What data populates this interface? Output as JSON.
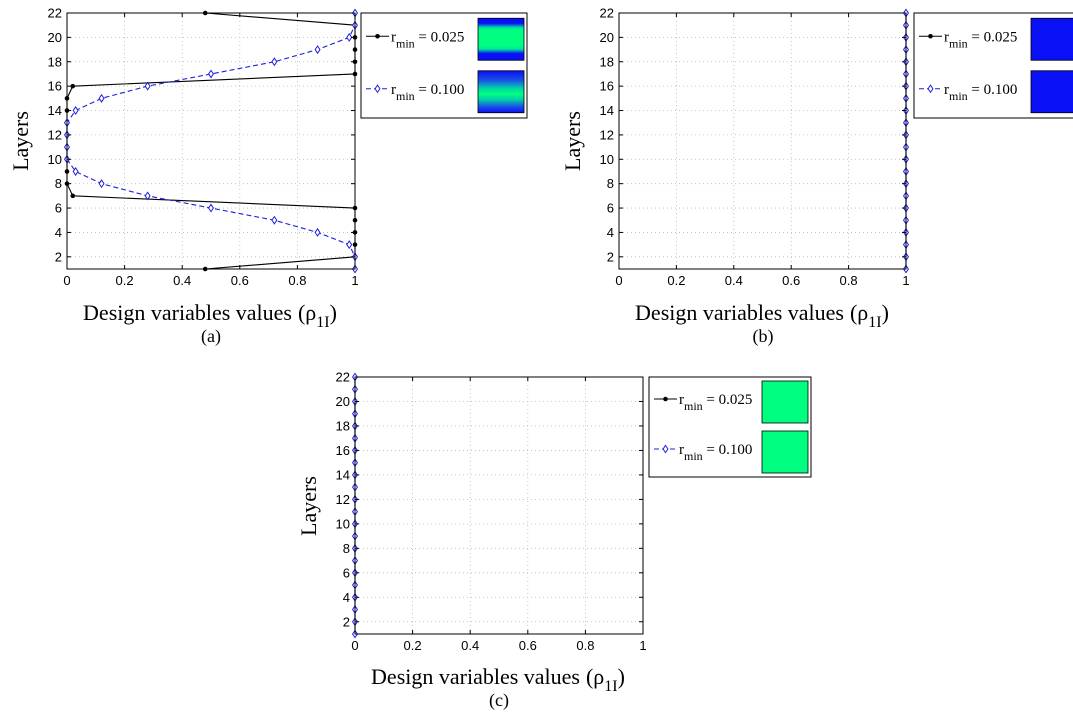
{
  "colors": {
    "series1": "#000000",
    "series2": "#1f1fdb",
    "blue_fill": "#0a10f5",
    "green_fill": "#00ff80"
  },
  "chart_data": [
    {
      "panel": "a",
      "type": "line",
      "caption": "(a)",
      "xlabel": "Design variables values",
      "xlabel_symbol": "(ρ",
      "xlabel_subscript": "1I",
      "xlabel_close": ")",
      "ylabel": "Layers",
      "xlim": [
        0,
        1
      ],
      "ylim": [
        1,
        22
      ],
      "xticks": [
        0,
        0.2,
        0.4,
        0.6,
        0.8,
        1
      ],
      "yticks": [
        2,
        4,
        6,
        8,
        10,
        12,
        14,
        16,
        18,
        20,
        22
      ],
      "grid": true,
      "legend": {
        "position": "outside-right",
        "entries": [
          {
            "prefix": "r",
            "sub": "min",
            "suffix": " = 0.025",
            "thumb": "bands"
          },
          {
            "prefix": "r",
            "sub": "min",
            "suffix": " = 0.100",
            "thumb": "gradient"
          }
        ]
      },
      "series": [
        {
          "x": [
            0.48,
            1,
            1,
            1,
            1,
            1,
            0.02,
            0,
            0,
            0,
            0,
            0,
            0,
            0,
            0,
            0.02,
            1,
            1,
            1,
            1,
            1,
            0.48
          ],
          "y": [
            1,
            2,
            3,
            4,
            5,
            6,
            7,
            8,
            9,
            10,
            11,
            12,
            13,
            14,
            15,
            16,
            17,
            18,
            19,
            20,
            21,
            22
          ]
        },
        {
          "x": [
            1,
            1,
            0.98,
            0.87,
            0.72,
            0.5,
            0.28,
            0.12,
            0.03,
            0,
            0,
            0,
            0,
            0.03,
            0.12,
            0.28,
            0.5,
            0.72,
            0.87,
            0.98,
            1,
            1
          ],
          "y": [
            1,
            2,
            3,
            4,
            5,
            6,
            7,
            8,
            9,
            10,
            11,
            12,
            13,
            14,
            15,
            16,
            17,
            18,
            19,
            20,
            21,
            22
          ]
        }
      ]
    },
    {
      "panel": "b",
      "type": "line",
      "caption": "(b)",
      "xlabel": "Design variables values",
      "xlabel_symbol": "(ρ",
      "xlabel_subscript": "1I",
      "xlabel_close": ")",
      "ylabel": "Layers",
      "xlim": [
        0,
        1
      ],
      "ylim": [
        1,
        22
      ],
      "xticks": [
        0,
        0.2,
        0.4,
        0.6,
        0.8,
        1
      ],
      "yticks": [
        2,
        4,
        6,
        8,
        10,
        12,
        14,
        16,
        18,
        20,
        22
      ],
      "grid": true,
      "legend": {
        "position": "outside-right",
        "entries": [
          {
            "prefix": "r",
            "sub": "min",
            "suffix": " = 0.025",
            "thumb": "blue"
          },
          {
            "prefix": "r",
            "sub": "min",
            "suffix": " = 0.100",
            "thumb": "blue"
          }
        ]
      },
      "series": [
        {
          "x": [
            1,
            1,
            1,
            1,
            1,
            1,
            1,
            1,
            1,
            1,
            1,
            1,
            1,
            1,
            1,
            1,
            1,
            1,
            1,
            1,
            1,
            1
          ],
          "y": [
            1,
            2,
            3,
            4,
            5,
            6,
            7,
            8,
            9,
            10,
            11,
            12,
            13,
            14,
            15,
            16,
            17,
            18,
            19,
            20,
            21,
            22
          ]
        },
        {
          "x": [
            1,
            1,
            1,
            1,
            1,
            1,
            1,
            1,
            1,
            1,
            1,
            1,
            1,
            1,
            1,
            1,
            1,
            1,
            1,
            1,
            1,
            1
          ],
          "y": [
            1,
            2,
            3,
            4,
            5,
            6,
            7,
            8,
            9,
            10,
            11,
            12,
            13,
            14,
            15,
            16,
            17,
            18,
            19,
            20,
            21,
            22
          ]
        }
      ]
    },
    {
      "panel": "c",
      "type": "line",
      "caption": "(c)",
      "xlabel": "Design variables values",
      "xlabel_symbol": "(ρ",
      "xlabel_subscript": "1I",
      "xlabel_close": ")",
      "ylabel": "Layers",
      "xlim": [
        0,
        1
      ],
      "ylim": [
        1,
        22
      ],
      "xticks": [
        0,
        0.2,
        0.4,
        0.6,
        0.8,
        1
      ],
      "yticks": [
        2,
        4,
        6,
        8,
        10,
        12,
        14,
        16,
        18,
        20,
        22
      ],
      "grid": true,
      "legend": {
        "position": "outside-right",
        "entries": [
          {
            "prefix": "r",
            "sub": "min",
            "suffix": " = 0.025",
            "thumb": "green"
          },
          {
            "prefix": "r",
            "sub": "min",
            "suffix": " = 0.100",
            "thumb": "green"
          }
        ]
      },
      "series": [
        {
          "x": [
            0,
            0,
            0,
            0,
            0,
            0,
            0,
            0,
            0,
            0,
            0,
            0,
            0,
            0,
            0,
            0,
            0,
            0,
            0,
            0,
            0,
            0
          ],
          "y": [
            1,
            2,
            3,
            4,
            5,
            6,
            7,
            8,
            9,
            10,
            11,
            12,
            13,
            14,
            15,
            16,
            17,
            18,
            19,
            20,
            21,
            22
          ]
        },
        {
          "x": [
            0,
            0,
            0,
            0,
            0,
            0,
            0,
            0,
            0,
            0,
            0,
            0,
            0,
            0,
            0,
            0,
            0,
            0,
            0,
            0,
            0,
            0
          ],
          "y": [
            1,
            2,
            3,
            4,
            5,
            6,
            7,
            8,
            9,
            10,
            11,
            12,
            13,
            14,
            15,
            16,
            17,
            18,
            19,
            20,
            21,
            22
          ]
        }
      ]
    }
  ]
}
